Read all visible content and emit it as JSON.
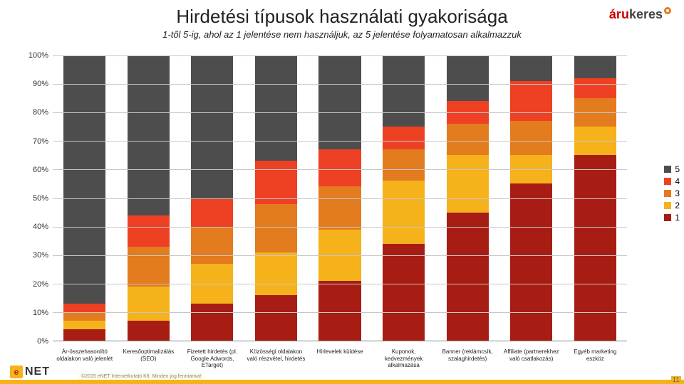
{
  "title": "Hirdetési típusok használati gyakorisága",
  "subtitle": "1-től 5-ig, ahol az 1 jelentése nem használjuk, az 5 jelentése folyamatosan alkalmazzuk",
  "logo_tr": {
    "part1": "áru",
    "part2": "keres"
  },
  "footer_logo": {
    "icon": "e",
    "text": "NET"
  },
  "copyright": "©2015 eNET Internetkutató Kft. Minden jog fenntartva!",
  "page_number": "11",
  "chart": {
    "type": "stacked-bar-100",
    "ylim": [
      0,
      100
    ],
    "ytick_step": 10,
    "ylabel_suffix": "%",
    "grid_color": "#c7c7c7",
    "background_color": "#ffffff",
    "series": [
      {
        "name": "1",
        "color": "#a71d14"
      },
      {
        "name": "2",
        "color": "#f6b21b"
      },
      {
        "name": "3",
        "color": "#e37b1f"
      },
      {
        "name": "4",
        "color": "#ee4023"
      },
      {
        "name": "5",
        "color": "#4d4d4d"
      }
    ],
    "categories": [
      "Ár-összehasonlító oldalakon való jelenlét",
      "Keresőoptimalizálás (SEO)",
      "Fizetett hirdetés (pl. Google Adwords, ETarget)",
      "Közösségi oldalakon való részvétel, hirdetés",
      "Hírlevelek küldése",
      "Kuponok, kedvezmények alkalmazása",
      "Banner (reklámcsík, szalaghirdetés)",
      "Affiliate (partnerekhez való csatlakozás)",
      "Egyéb marketing eszköz"
    ],
    "values": [
      [
        4,
        3,
        3,
        3,
        87
      ],
      [
        7,
        12,
        14,
        11,
        56
      ],
      [
        13,
        14,
        13,
        10,
        50
      ],
      [
        16,
        15,
        17,
        15,
        37
      ],
      [
        21,
        18,
        15,
        13,
        33
      ],
      [
        34,
        22,
        11,
        8,
        25
      ],
      [
        45,
        20,
        11,
        8,
        16
      ],
      [
        55,
        10,
        12,
        14,
        9
      ],
      [
        65,
        10,
        10,
        7,
        8
      ]
    ],
    "label_fontsize": 8,
    "tick_fontsize": 11,
    "bar_width_pct": 66
  },
  "legend_labels": [
    "5",
    "4",
    "3",
    "2",
    "1"
  ]
}
